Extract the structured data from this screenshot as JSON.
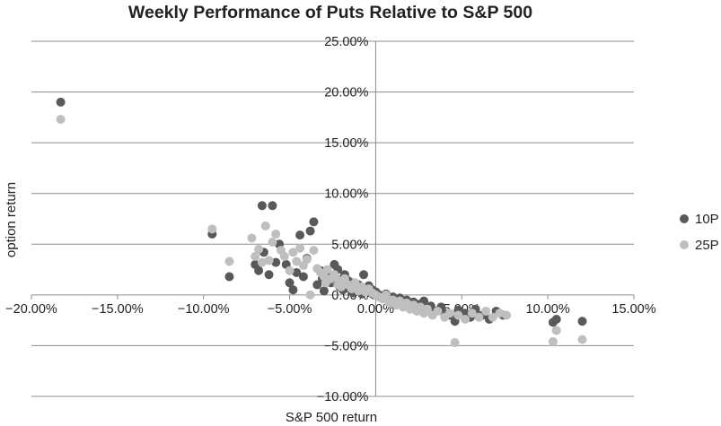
{
  "chart_data": {
    "type": "scatter",
    "title": "Weekly Performance of Puts Relative to S&P 500",
    "xlabel": "S&P 500 return",
    "ylabel": "option return",
    "xlim": [
      -0.2,
      0.15
    ],
    "ylim": [
      -0.1,
      0.25
    ],
    "x_ticks": [
      -0.2,
      -0.15,
      -0.1,
      -0.05,
      0.0,
      0.05,
      0.1,
      0.15
    ],
    "x_tick_labels": [
      "−20.00%",
      "−15.00%",
      "−10.00%",
      "−5.00%",
      "0.00%",
      "5.00%",
      "10.00%",
      "15.00%"
    ],
    "y_ticks": [
      -0.1,
      -0.05,
      0.0,
      0.05,
      0.1,
      0.15,
      0.2,
      0.25
    ],
    "y_tick_labels": [
      "−10.00%",
      "−5.00%",
      "0.00%",
      "5.00%",
      "10.00%",
      "15.00%",
      "20.00%",
      "25.00%"
    ],
    "grid": "horizontal",
    "legend_position": "right",
    "series": [
      {
        "name": "10P",
        "color": "#595959",
        "points": [
          [
            -0.183,
            0.19
          ],
          [
            -0.095,
            0.06
          ],
          [
            -0.085,
            0.018
          ],
          [
            -0.07,
            0.03
          ],
          [
            -0.068,
            0.024
          ],
          [
            -0.066,
            0.088
          ],
          [
            -0.065,
            0.042
          ],
          [
            -0.062,
            0.02
          ],
          [
            -0.06,
            0.088
          ],
          [
            -0.058,
            0.032
          ],
          [
            -0.056,
            0.05
          ],
          [
            -0.052,
            0.03
          ],
          [
            -0.05,
            0.012
          ],
          [
            -0.048,
            0.005
          ],
          [
            -0.046,
            0.022
          ],
          [
            -0.044,
            0.059
          ],
          [
            -0.042,
            0.018
          ],
          [
            -0.04,
            0.036
          ],
          [
            -0.038,
            0.063
          ],
          [
            -0.036,
            0.072
          ],
          [
            -0.034,
            0.01
          ],
          [
            -0.032,
            0.024
          ],
          [
            -0.031,
            0.016
          ],
          [
            -0.03,
            0.004
          ],
          [
            -0.028,
            0.02
          ],
          [
            -0.026,
            0.012
          ],
          [
            -0.024,
            0.03
          ],
          [
            -0.022,
            0.025
          ],
          [
            -0.021,
            0.008
          ],
          [
            -0.02,
            0.015
          ],
          [
            -0.019,
            0.005
          ],
          [
            -0.018,
            0.02
          ],
          [
            -0.017,
            0.01
          ],
          [
            -0.016,
            0.014
          ],
          [
            -0.015,
            0.006
          ],
          [
            -0.014,
            0.012
          ],
          [
            -0.013,
            0.002
          ],
          [
            -0.012,
            0.008
          ],
          [
            -0.011,
            0.004
          ],
          [
            -0.01,
            0.01
          ],
          [
            -0.009,
            0.006
          ],
          [
            -0.008,
            0.001
          ],
          [
            -0.007,
            0.02
          ],
          [
            -0.006,
            0.007
          ],
          [
            -0.005,
            0.004
          ],
          [
            -0.004,
            0.009
          ],
          [
            -0.003,
            0.002
          ],
          [
            -0.002,
            0.005
          ],
          [
            -0.001,
            0.0
          ],
          [
            0.0,
            0.003
          ],
          [
            0.002,
            0.0
          ],
          [
            0.004,
            -0.002
          ],
          [
            0.006,
            0.001
          ],
          [
            0.008,
            -0.004
          ],
          [
            0.01,
            -0.002
          ],
          [
            0.012,
            -0.006
          ],
          [
            0.014,
            -0.003
          ],
          [
            0.016,
            -0.008
          ],
          [
            0.018,
            -0.005
          ],
          [
            0.02,
            -0.01
          ],
          [
            0.022,
            -0.007
          ],
          [
            0.024,
            -0.012
          ],
          [
            0.026,
            -0.009
          ],
          [
            0.028,
            -0.006
          ],
          [
            0.03,
            -0.014
          ],
          [
            0.032,
            -0.011
          ],
          [
            0.035,
            -0.016
          ],
          [
            0.038,
            -0.012
          ],
          [
            0.04,
            -0.018
          ],
          [
            0.043,
            -0.02
          ],
          [
            0.046,
            -0.026
          ],
          [
            0.048,
            -0.015
          ],
          [
            0.052,
            -0.018
          ],
          [
            0.055,
            -0.022
          ],
          [
            0.058,
            -0.014
          ],
          [
            0.062,
            -0.02
          ],
          [
            0.066,
            -0.024
          ],
          [
            0.07,
            -0.016
          ],
          [
            0.074,
            -0.02
          ],
          [
            0.103,
            -0.027
          ],
          [
            0.105,
            -0.024
          ],
          [
            0.12,
            -0.026
          ]
        ]
      },
      {
        "name": "25P",
        "color": "#bfbfbf",
        "points": [
          [
            -0.183,
            0.173
          ],
          [
            -0.095,
            0.065
          ],
          [
            -0.085,
            0.033
          ],
          [
            -0.072,
            0.056
          ],
          [
            -0.07,
            0.038
          ],
          [
            -0.068,
            0.045
          ],
          [
            -0.066,
            0.032
          ],
          [
            -0.064,
            0.068
          ],
          [
            -0.062,
            0.034
          ],
          [
            -0.06,
            0.052
          ],
          [
            -0.058,
            0.06
          ],
          [
            -0.055,
            0.044
          ],
          [
            -0.053,
            0.038
          ],
          [
            -0.05,
            0.024
          ],
          [
            -0.048,
            0.042
          ],
          [
            -0.046,
            0.033
          ],
          [
            -0.044,
            0.046
          ],
          [
            -0.042,
            0.029
          ],
          [
            -0.04,
            0.035
          ],
          [
            -0.038,
            0.0
          ],
          [
            -0.036,
            0.044
          ],
          [
            -0.034,
            0.026
          ],
          [
            -0.032,
            0.022
          ],
          [
            -0.03,
            0.018
          ],
          [
            -0.029,
            0.012
          ],
          [
            -0.028,
            0.025
          ],
          [
            -0.026,
            0.016
          ],
          [
            -0.024,
            0.02
          ],
          [
            -0.022,
            0.01
          ],
          [
            -0.021,
            0.014
          ],
          [
            -0.02,
            0.008
          ],
          [
            -0.018,
            0.016
          ],
          [
            -0.016,
            0.01
          ],
          [
            -0.014,
            0.006
          ],
          [
            -0.012,
            0.012
          ],
          [
            -0.01,
            0.004
          ],
          [
            -0.008,
            0.008
          ],
          [
            -0.006,
            0.003
          ],
          [
            -0.004,
            0.006
          ],
          [
            -0.002,
            0.002
          ],
          [
            0.0,
            0.0
          ],
          [
            0.002,
            -0.002
          ],
          [
            0.004,
            -0.004
          ],
          [
            0.006,
            0.0
          ],
          [
            0.008,
            -0.008
          ],
          [
            0.01,
            -0.005
          ],
          [
            0.012,
            -0.01
          ],
          [
            0.014,
            -0.006
          ],
          [
            0.016,
            -0.012
          ],
          [
            0.018,
            -0.008
          ],
          [
            0.02,
            -0.014
          ],
          [
            0.022,
            -0.01
          ],
          [
            0.024,
            -0.016
          ],
          [
            0.026,
            -0.012
          ],
          [
            0.028,
            -0.018
          ],
          [
            0.03,
            -0.014
          ],
          [
            0.033,
            -0.02
          ],
          [
            0.036,
            -0.016
          ],
          [
            0.04,
            -0.022
          ],
          [
            0.043,
            -0.018
          ],
          [
            0.046,
            -0.047
          ],
          [
            0.048,
            -0.02
          ],
          [
            0.052,
            -0.024
          ],
          [
            0.056,
            -0.018
          ],
          [
            0.06,
            -0.022
          ],
          [
            0.064,
            -0.016
          ],
          [
            0.068,
            -0.022
          ],
          [
            0.072,
            -0.018
          ],
          [
            0.076,
            -0.02
          ],
          [
            0.103,
            -0.046
          ],
          [
            0.105,
            -0.035
          ],
          [
            0.12,
            -0.044
          ]
        ]
      }
    ]
  }
}
